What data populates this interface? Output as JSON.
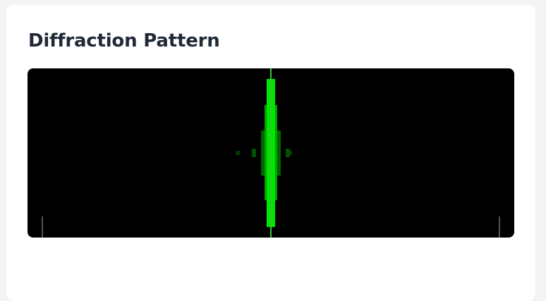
{
  "card": {
    "title": "Diffraction Pattern"
  },
  "pattern": {
    "color": "#00e600",
    "center_line_color": "#22cc22",
    "background": "#000000",
    "marker_color": "#9ca3af"
  }
}
